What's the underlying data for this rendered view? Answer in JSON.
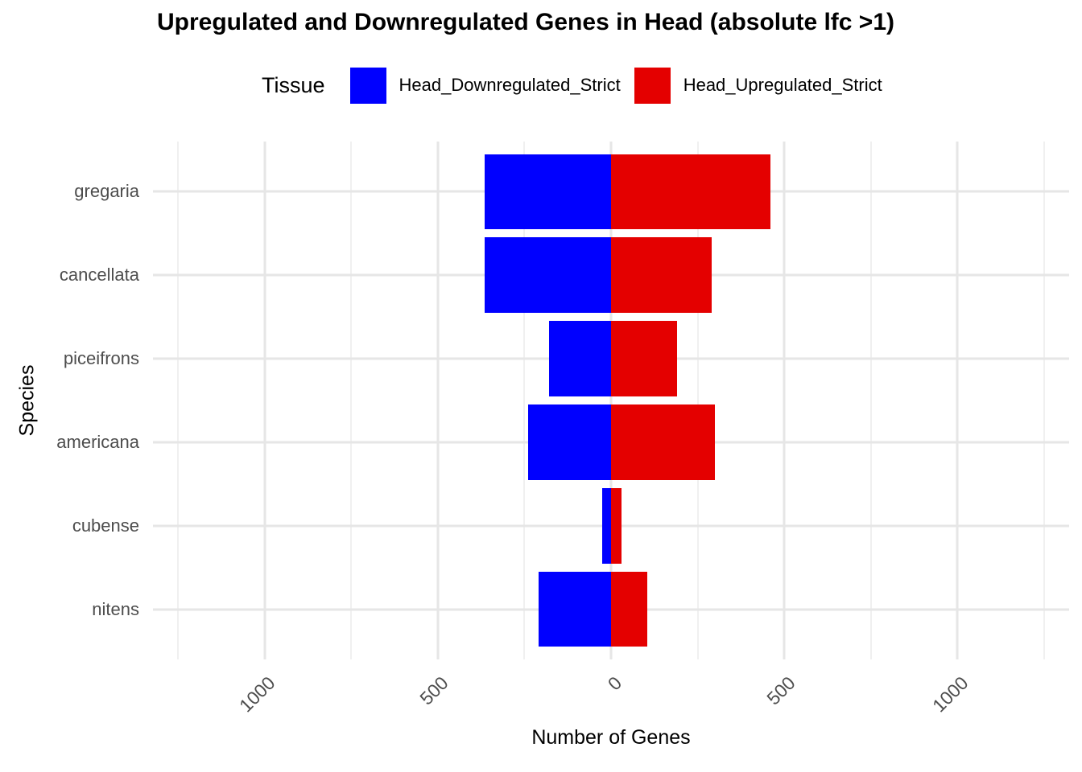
{
  "figure": {
    "title": "Upregulated and Downregulated Genes in Head (absolute lfc >1)"
  },
  "chart_data": {
    "type": "bar",
    "subtype": "horizontal-diverging",
    "title": "Upregulated and Downregulated Genes in Head (absolute lfc >1)",
    "legend_title": "Tissue",
    "legend_position": "top",
    "grid": "on",
    "categories": [
      "gregaria",
      "cancellata",
      "piceifrons",
      "americana",
      "cubense",
      "nitens"
    ],
    "series": [
      {
        "name": "Head_Downregulated_Strict",
        "color": "#0000FF",
        "direction": "negative",
        "values": [
          -365,
          -365,
          -180,
          -240,
          -25,
          -210
        ]
      },
      {
        "name": "Head_Upregulated_Strict",
        "color": "#E40000",
        "direction": "positive",
        "values": [
          460,
          290,
          190,
          300,
          30,
          105
        ]
      }
    ],
    "xlabel": "Number of Genes",
    "ylabel": "Species",
    "x_ticks": [
      -1000,
      -500,
      0,
      500,
      1000
    ],
    "x_tick_labels": [
      "1000",
      "500",
      "0",
      "500",
      "1000"
    ],
    "x_minor_gridlines": [
      -1250,
      -750,
      -250,
      250,
      750,
      1250
    ],
    "xlim": [
      -1322,
      1322
    ],
    "bar_fraction": 0.9,
    "category_expansion": 0.6,
    "colors": {
      "downregulated": "#0000FF",
      "upregulated": "#E40000",
      "gridline_major": "#E6E6E6",
      "gridline_minor": "#F0F0F0",
      "tick_text": "#4D4D4D",
      "title_text": "#000000"
    }
  }
}
